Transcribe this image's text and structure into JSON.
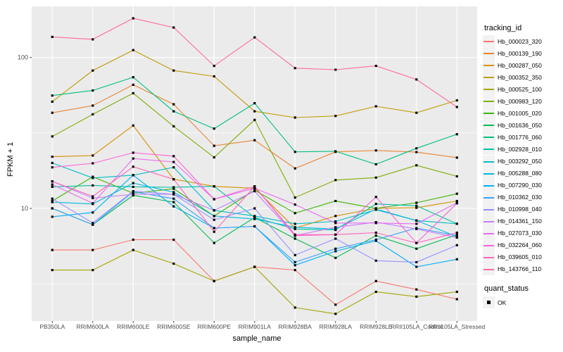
{
  "chart": {
    "y_title": "FPKM + 1",
    "x_title": "sample_name"
  },
  "legend": {
    "tracking_title": "tracking_id",
    "quant_title": "quant_status",
    "quant_items": [
      {
        "label": "OK",
        "shape": "square",
        "color": "#000000"
      }
    ]
  },
  "chart_data": {
    "type": "line",
    "title": "",
    "xlabel": "sample_name",
    "ylabel": "FPKM + 1",
    "x_type": "categorical",
    "y_scale": "log10",
    "y_ticks": [
      10,
      100
    ],
    "y_minor_gridlines": [
      3.162,
      31.62
    ],
    "ylim": [
      1.8,
      216
    ],
    "grid": true,
    "panel_background": "#EBEBEB",
    "gridline_color": "#FFFFFF",
    "point_marker": {
      "shape": "square",
      "color": "#000000",
      "size": 3
    },
    "legend_position": "right",
    "categories": [
      "PB350LA",
      "RRIM600LA",
      "RRIM600LE",
      "RRIM600SE",
      "RRIM600PE",
      "RRIM901LA",
      "RRIM928BA",
      "RRIM928LA",
      "RRIM928LE",
      "RRII105LA_Control",
      "RRII105LA_Stressed"
    ],
    "series": [
      {
        "name": "Hb_000023_320",
        "color": "#F8766D",
        "values": [
          5.3,
          5.3,
          6.2,
          6.2,
          3.3,
          4.1,
          3.9,
          2.3,
          3.3,
          2.9,
          2.5
        ]
      },
      {
        "name": "Hb_000139_190",
        "color": "#EA8331",
        "values": [
          43,
          48,
          66,
          49,
          26,
          28.3,
          18.4,
          23.7,
          24.2,
          23.6,
          21.7
        ]
      },
      {
        "name": "Hb_000287_050",
        "color": "#D89000",
        "values": [
          22,
          22.4,
          35.4,
          15.6,
          14.0,
          13.6,
          7.4,
          8.9,
          10.0,
          10.1,
          11.2
        ]
      },
      {
        "name": "Hb_000352_350",
        "color": "#C09B00",
        "values": [
          51,
          82,
          112,
          82,
          75,
          44,
          40,
          41,
          47.5,
          43,
          52
        ]
      },
      {
        "name": "Hb_000525_100",
        "color": "#A3A500",
        "values": [
          3.9,
          3.9,
          5.3,
          4.3,
          3.3,
          4.1,
          2.2,
          2.0,
          2.8,
          2.6,
          2.8
        ]
      },
      {
        "name": "Hb_000983_120",
        "color": "#7CAE00",
        "values": [
          30,
          42,
          58,
          35,
          21.8,
          38.6,
          11.8,
          15.4,
          16,
          19.3,
          16.3
        ]
      },
      {
        "name": "Hb_001005_020",
        "color": "#39B600",
        "values": [
          11.2,
          16.2,
          12.6,
          13.5,
          8.9,
          13.2,
          9.3,
          11.2,
          10.0,
          10.9,
          12.5
        ]
      },
      {
        "name": "Hb_001636_050",
        "color": "#00BB4E",
        "values": [
          10.0,
          7.8,
          12.2,
          11.0,
          5.9,
          8.7,
          6.3,
          4.7,
          6.6,
          5.4,
          6.7
        ]
      },
      {
        "name": "Hb_001776_060",
        "color": "#00BF7D",
        "values": [
          56,
          60.5,
          74,
          44,
          33.8,
          49.8,
          23.7,
          23.9,
          19.6,
          25,
          31
        ]
      },
      {
        "name": "Hb_002928_010",
        "color": "#00C1A3",
        "values": [
          13.9,
          14.2,
          13.9,
          13.8,
          14.0,
          8.7,
          7.3,
          7.2,
          10.7,
          10.4,
          7.9
        ]
      },
      {
        "name": "Hb_003292_050",
        "color": "#00BFC4",
        "values": [
          20,
          15.9,
          16.6,
          18.7,
          9.7,
          8.9,
          7.9,
          8.2,
          9.8,
          8.3,
          7.9
        ]
      },
      {
        "name": "Hb_005288_080",
        "color": "#00BAE0",
        "values": [
          11.0,
          10.7,
          14.7,
          12.8,
          8.9,
          8.5,
          7.5,
          7.3,
          9.9,
          8.3,
          6.5
        ]
      },
      {
        "name": "Hb_007290_030",
        "color": "#00B0F6",
        "values": [
          8.8,
          9.4,
          16.6,
          10.3,
          7.4,
          7.6,
          4.2,
          5.2,
          6.1,
          4.1,
          4.6
        ]
      },
      {
        "name": "Hb_010362_030",
        "color": "#35A2FF",
        "values": [
          10.0,
          7.8,
          12.9,
          11.6,
          7.4,
          7.6,
          4.4,
          5.4,
          6.2,
          7.4,
          6.6
        ]
      },
      {
        "name": "Hb_010998_040",
        "color": "#9590FF",
        "values": [
          11.6,
          8.0,
          13.0,
          12.4,
          8.4,
          10.0,
          4.9,
          6.3,
          4.5,
          4.4,
          5.7
        ]
      },
      {
        "name": "Hb_014361_150",
        "color": "#C77CFF",
        "values": [
          15.1,
          11.7,
          12.4,
          12.4,
          9.7,
          13.0,
          6.6,
          7.5,
          8.1,
          7.3,
          6.4
        ]
      },
      {
        "name": "Hb_027073_030",
        "color": "#E76BF3",
        "values": [
          14.4,
          10.8,
          21.4,
          20.3,
          11.5,
          13.6,
          10.6,
          8.0,
          8.0,
          7.9,
          10.9
        ]
      },
      {
        "name": "Hb_032264_060",
        "color": "#FA62DB",
        "values": [
          18.7,
          19.9,
          23.4,
          22.2,
          11.5,
          14.0,
          6.6,
          6.7,
          11.9,
          5.9,
          10.8
        ]
      },
      {
        "name": "Hb_039605_010",
        "color": "#FF62BC",
        "values": [
          15.1,
          12.0,
          18.9,
          15.6,
          7.0,
          14.0,
          6.7,
          6.7,
          6.9,
          5.9,
          6.9
        ]
      },
      {
        "name": "Hb_143766_110",
        "color": "#FF6A98",
        "values": [
          137,
          132,
          182,
          158,
          88,
          136,
          85,
          83,
          88,
          71.5,
          47
        ]
      }
    ]
  }
}
